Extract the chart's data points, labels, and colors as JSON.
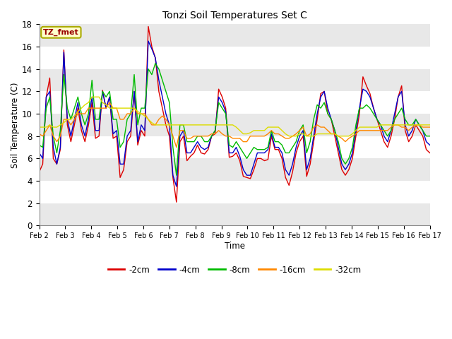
{
  "title": "Tonzi Soil Temperatures Set C",
  "xlabel": "Time",
  "ylabel": "Soil Temperature (C)",
  "ylim": [
    0,
    18
  ],
  "xlim": [
    0,
    15
  ],
  "annotation_text": "TZ_fmet",
  "annotation_bg": "#ffffcc",
  "annotation_border": "#aaaa00",
  "annotation_fg": "#990000",
  "fig_bg": "#ffffff",
  "plot_bg": "#ffffff",
  "band_color": "#e8e8e8",
  "grid_color": "#ffffff",
  "xtick_labels": [
    "Feb 2",
    "Feb 3",
    "Feb 4",
    "Feb 5",
    "Feb 6",
    "Feb 7",
    "Feb 8",
    "Feb 9",
    "Feb 10",
    "Feb 11",
    "Feb 12",
    "Feb 13",
    "Feb 14",
    "Feb 15",
    "Feb 16",
    "Feb 17"
  ],
  "legend_labels": [
    "-2cm",
    "-4cm",
    "-8cm",
    "-16cm",
    "-32cm"
  ],
  "legend_colors": [
    "#dd0000",
    "#0000cc",
    "#00bb00",
    "#ff8800",
    "#dddd00"
  ],
  "series": {
    "s2cm": [
      4.8,
      5.5,
      11.5,
      13.2,
      6.0,
      5.5,
      6.8,
      15.7,
      9.0,
      7.5,
      9.0,
      10.5,
      8.5,
      7.5,
      9.0,
      11.0,
      7.8,
      8.0,
      12.1,
      10.5,
      11.5,
      7.8,
      8.0,
      4.3,
      5.0,
      7.5,
      8.0,
      12.0,
      7.2,
      8.5,
      8.0,
      17.8,
      16.0,
      15.0,
      12.0,
      10.5,
      9.0,
      8.0,
      4.3,
      2.1,
      7.5,
      8.0,
      5.8,
      6.2,
      6.5,
      7.2,
      6.5,
      6.4,
      6.8,
      8.0,
      8.2,
      12.2,
      11.5,
      10.5,
      6.1,
      6.2,
      6.5,
      5.8,
      4.4,
      4.3,
      4.2,
      5.0,
      6.0,
      6.0,
      5.8,
      5.9,
      8.0,
      6.8,
      6.8,
      6.0,
      4.3,
      3.6,
      4.8,
      6.5,
      7.5,
      8.0,
      4.4,
      5.5,
      7.5,
      9.5,
      11.8,
      12.0,
      10.0,
      9.5,
      8.0,
      6.5,
      5.0,
      4.5,
      5.0,
      6.0,
      8.0,
      10.0,
      13.3,
      12.5,
      11.8,
      10.5,
      9.5,
      8.5,
      7.5,
      7.0,
      8.0,
      9.5,
      11.5,
      12.5,
      8.5,
      7.5,
      8.0,
      9.0,
      8.5,
      8.0,
      6.8,
      6.5
    ],
    "s4cm": [
      6.5,
      6.0,
      11.5,
      12.0,
      7.0,
      5.5,
      7.0,
      15.5,
      9.5,
      8.0,
      9.5,
      11.0,
      9.0,
      8.0,
      9.5,
      11.5,
      8.5,
      8.5,
      12.0,
      10.5,
      11.5,
      8.2,
      8.5,
      5.5,
      5.5,
      8.0,
      8.5,
      12.0,
      7.5,
      9.0,
      8.5,
      16.5,
      15.8,
      15.0,
      13.0,
      11.5,
      10.0,
      9.0,
      4.5,
      3.5,
      8.0,
      8.5,
      6.5,
      6.5,
      7.0,
      7.5,
      7.0,
      6.8,
      7.0,
      8.0,
      8.5,
      11.5,
      11.0,
      10.2,
      6.5,
      6.5,
      7.0,
      6.2,
      5.0,
      4.5,
      4.5,
      5.5,
      6.5,
      6.5,
      6.5,
      6.8,
      8.2,
      7.0,
      7.0,
      6.5,
      5.0,
      4.5,
      5.5,
      7.0,
      8.0,
      8.5,
      5.0,
      6.0,
      8.0,
      10.0,
      11.5,
      12.0,
      10.5,
      9.5,
      8.5,
      7.0,
      5.5,
      5.0,
      5.5,
      6.5,
      8.5,
      10.5,
      12.2,
      12.0,
      11.5,
      10.5,
      9.5,
      9.0,
      8.0,
      7.5,
      8.5,
      10.0,
      11.5,
      12.0,
      9.0,
      8.0,
      8.5,
      9.5,
      9.0,
      8.5,
      7.5,
      7.2
    ],
    "s8cm": [
      7.2,
      7.0,
      10.5,
      11.5,
      8.0,
      6.5,
      8.5,
      13.5,
      10.5,
      9.5,
      10.5,
      11.5,
      10.0,
      9.0,
      10.0,
      13.0,
      9.5,
      9.5,
      12.0,
      11.5,
      12.0,
      9.5,
      9.5,
      7.0,
      7.5,
      9.5,
      10.0,
      13.5,
      9.0,
      10.5,
      10.5,
      14.0,
      13.5,
      14.5,
      14.0,
      13.0,
      12.0,
      11.0,
      7.0,
      4.5,
      9.0,
      9.0,
      7.5,
      7.5,
      7.5,
      8.0,
      8.0,
      7.5,
      7.5,
      8.0,
      8.5,
      11.0,
      10.5,
      10.0,
      7.2,
      7.0,
      7.5,
      7.0,
      6.5,
      6.0,
      6.5,
      7.0,
      6.8,
      6.8,
      6.8,
      7.0,
      8.5,
      7.5,
      7.5,
      7.2,
      6.5,
      6.5,
      7.0,
      7.5,
      8.5,
      9.0,
      6.5,
      7.5,
      9.5,
      10.8,
      10.5,
      11.0,
      10.0,
      9.5,
      8.5,
      7.5,
      6.0,
      5.5,
      6.0,
      7.0,
      9.0,
      10.5,
      10.5,
      10.8,
      10.5,
      10.0,
      9.5,
      9.0,
      8.5,
      8.0,
      8.5,
      9.5,
      10.0,
      10.5,
      9.5,
      9.0,
      9.0,
      9.5,
      9.0,
      8.5,
      8.0,
      8.0
    ],
    "s16cm": [
      8.2,
      8.0,
      8.5,
      9.0,
      8.0,
      7.5,
      8.0,
      9.5,
      9.5,
      9.0,
      9.5,
      10.0,
      10.0,
      10.0,
      10.5,
      10.5,
      10.5,
      10.5,
      10.5,
      10.5,
      11.0,
      10.5,
      10.5,
      9.5,
      9.5,
      10.0,
      10.0,
      10.5,
      10.0,
      10.0,
      10.0,
      9.5,
      9.0,
      9.0,
      9.5,
      9.8,
      9.5,
      9.0,
      8.0,
      7.0,
      8.5,
      8.5,
      7.8,
      7.8,
      8.0,
      8.0,
      8.0,
      8.0,
      8.0,
      8.2,
      8.2,
      8.5,
      8.2,
      8.0,
      8.0,
      7.8,
      7.8,
      7.8,
      7.5,
      7.5,
      8.0,
      8.0,
      8.0,
      8.0,
      8.0,
      8.2,
      8.5,
      8.2,
      8.2,
      8.0,
      7.8,
      7.8,
      8.0,
      8.2,
      8.5,
      8.8,
      8.0,
      8.2,
      8.8,
      9.0,
      8.8,
      8.8,
      8.5,
      8.2,
      8.2,
      8.0,
      7.8,
      7.5,
      7.8,
      8.0,
      8.2,
      8.5,
      8.5,
      8.5,
      8.5,
      8.5,
      8.5,
      8.5,
      8.5,
      8.5,
      8.8,
      9.0,
      9.0,
      8.8,
      8.8,
      8.5,
      8.8,
      9.0,
      9.0,
      8.8,
      8.8,
      8.8
    ],
    "s32cm": [
      8.8,
      8.8,
      8.8,
      9.0,
      8.8,
      8.8,
      9.0,
      9.2,
      9.5,
      9.5,
      9.8,
      10.2,
      10.5,
      10.8,
      11.0,
      11.5,
      11.5,
      11.5,
      11.0,
      10.8,
      10.5,
      10.5,
      10.5,
      10.5,
      10.5,
      10.5,
      10.5,
      10.5,
      10.2,
      10.0,
      9.8,
      9.5,
      9.2,
      9.0,
      9.0,
      9.0,
      9.0,
      9.0,
      9.0,
      9.0,
      9.0,
      9.0,
      9.0,
      9.0,
      9.0,
      9.0,
      9.0,
      9.0,
      9.0,
      9.0,
      9.0,
      9.0,
      9.0,
      9.0,
      9.0,
      9.0,
      8.8,
      8.5,
      8.2,
      8.2,
      8.3,
      8.5,
      8.5,
      8.5,
      8.5,
      8.8,
      8.8,
      8.8,
      8.8,
      8.5,
      8.2,
      8.0,
      8.0,
      8.0,
      8.2,
      8.2,
      8.0,
      8.0,
      8.0,
      8.2,
      8.2,
      8.2,
      8.2,
      8.2,
      8.2,
      8.0,
      8.0,
      8.0,
      8.0,
      8.2,
      8.5,
      8.8,
      8.8,
      8.8,
      8.8,
      8.8,
      8.8,
      9.0,
      9.0,
      9.0,
      9.0,
      9.0,
      9.0,
      9.0,
      9.0,
      9.0,
      9.0,
      9.0,
      9.0,
      9.0,
      9.0,
      9.0
    ]
  }
}
